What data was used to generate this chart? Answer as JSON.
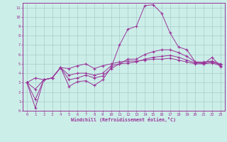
{
  "title": "",
  "xlabel": "Windchill (Refroidissement éolien,°C)",
  "ylabel": "",
  "bg_color": "#cceee8",
  "grid_color": "#aacccc",
  "line_color": "#993399",
  "spine_color": "#993399",
  "xlim": [
    -0.5,
    23.5
  ],
  "ylim": [
    0,
    11.5
  ],
  "xticks": [
    0,
    1,
    2,
    3,
    4,
    5,
    6,
    7,
    8,
    9,
    10,
    11,
    12,
    13,
    14,
    15,
    16,
    17,
    18,
    19,
    20,
    21,
    22,
    23
  ],
  "yticks": [
    0,
    1,
    2,
    3,
    4,
    5,
    6,
    7,
    8,
    9,
    10,
    11
  ],
  "series": [
    [
      3.0,
      0.3,
      3.3,
      3.5,
      4.6,
      2.6,
      3.1,
      3.2,
      2.7,
      3.3,
      4.6,
      7.0,
      8.7,
      9.0,
      11.2,
      11.3,
      10.4,
      8.3,
      6.8,
      6.5,
      5.2,
      5.0,
      5.7,
      4.7
    ],
    [
      3.0,
      1.2,
      3.3,
      3.5,
      4.6,
      3.3,
      3.5,
      3.8,
      3.5,
      3.7,
      4.5,
      5.0,
      5.5,
      5.5,
      6.0,
      6.3,
      6.5,
      6.5,
      6.2,
      5.8,
      5.2,
      5.2,
      5.3,
      5.0
    ],
    [
      3.0,
      2.3,
      3.3,
      3.5,
      4.6,
      3.8,
      4.0,
      4.0,
      3.8,
      4.0,
      4.8,
      5.0,
      5.1,
      5.2,
      5.5,
      5.7,
      5.8,
      5.9,
      5.7,
      5.4,
      5.1,
      5.1,
      5.2,
      4.9
    ],
    [
      3.0,
      3.5,
      3.3,
      3.5,
      4.6,
      4.5,
      4.8,
      5.0,
      4.5,
      4.8,
      5.0,
      5.2,
      5.3,
      5.3,
      5.4,
      5.5,
      5.5,
      5.6,
      5.4,
      5.2,
      5.0,
      5.0,
      5.1,
      4.8
    ]
  ]
}
